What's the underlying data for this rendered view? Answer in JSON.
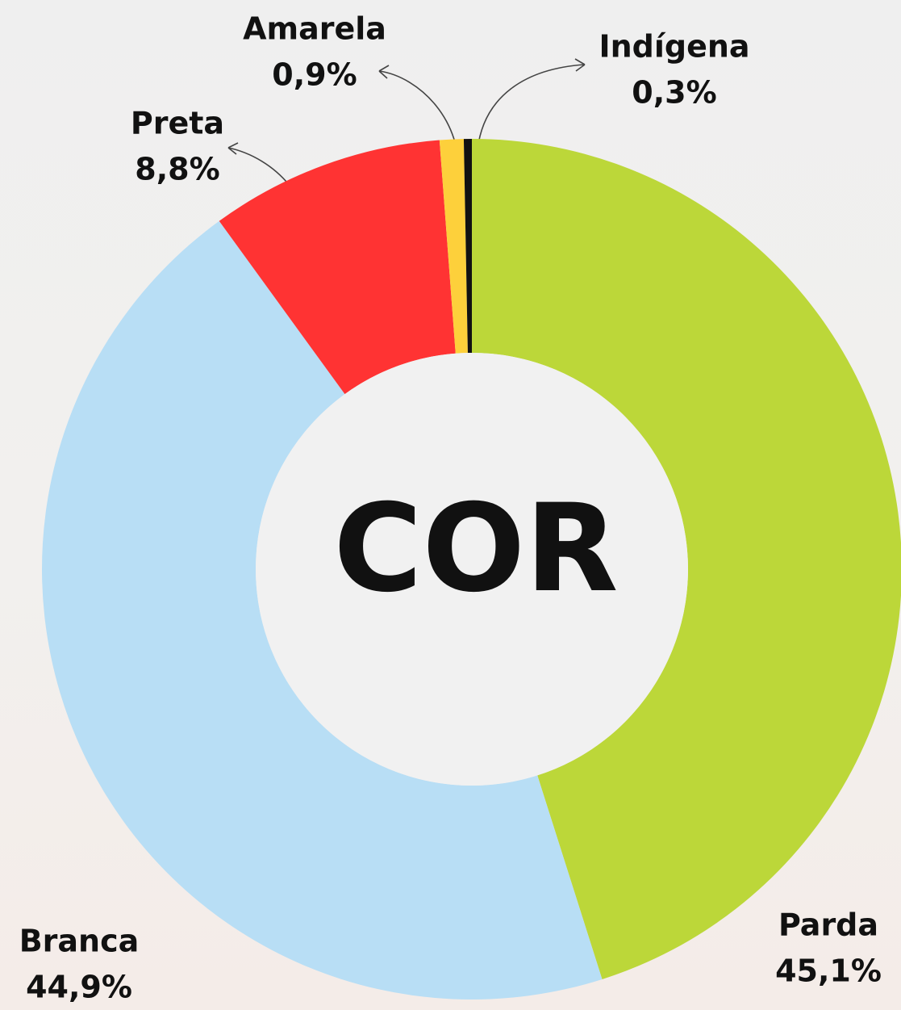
{
  "chart_data": {
    "type": "pie",
    "donut": true,
    "center_label": "COR",
    "categories": [
      "Parda",
      "Branca",
      "Preta",
      "Amarela",
      "Indígena"
    ],
    "values": [
      45.1,
      44.9,
      8.8,
      0.9,
      0.3
    ],
    "value_labels": [
      "45,1%",
      "44,9%",
      "8,8%",
      "0,9%",
      "0,3%"
    ],
    "colors": [
      "#bcd739",
      "#b8def5",
      "#ff3333",
      "#fdd03b",
      "#111111"
    ]
  }
}
